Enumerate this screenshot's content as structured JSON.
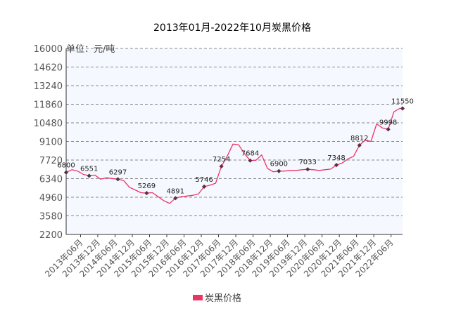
{
  "chart_data": {
    "type": "line",
    "title": "2013年01月-2022年10月炭黑价格",
    "unit_label": "单位：元/吨",
    "legend": [
      "炭黑价格"
    ],
    "colors": {
      "line": "#ee3366",
      "marker": "#553344",
      "plot_bg": "#f6f8ff",
      "grid": "#888888"
    },
    "grid": true,
    "legend_position": "bottom",
    "ylim": [
      2200,
      16000
    ],
    "yticks": [
      2200,
      3580,
      4960,
      6340,
      7720,
      9100,
      10480,
      11860,
      13240,
      14620,
      16000
    ],
    "xlim": [
      "2013-01",
      "2022-10"
    ],
    "x_tick_labels": [
      "2013年06月",
      "2013年12月",
      "2014年06月",
      "2014年12月",
      "2015年06月",
      "2015年12月",
      "2016年06月",
      "2016年12月",
      "2017年06月",
      "2017年12月",
      "2018年06月",
      "2018年12月",
      "2019年06月",
      "2019年12月",
      "2020年06月",
      "2020年12月",
      "2021年06月",
      "2021年12月",
      "2022年06月"
    ],
    "series": [
      {
        "name": "炭黑价格",
        "x": [
          "2013-01",
          "2013-03",
          "2013-05",
          "2013-07",
          "2013-09",
          "2013-11",
          "2014-01",
          "2014-03",
          "2014-05",
          "2014-07",
          "2014-09",
          "2014-11",
          "2015-01",
          "2015-03",
          "2015-05",
          "2015-07",
          "2015-09",
          "2015-11",
          "2016-01",
          "2016-03",
          "2016-05",
          "2016-07",
          "2016-09",
          "2016-11",
          "2017-01",
          "2017-03",
          "2017-05",
          "2017-07",
          "2017-09",
          "2017-11",
          "2018-01",
          "2018-03",
          "2018-05",
          "2018-07",
          "2018-09",
          "2018-11",
          "2019-01",
          "2019-03",
          "2019-05",
          "2019-07",
          "2019-09",
          "2019-11",
          "2020-01",
          "2020-03",
          "2020-05",
          "2020-07",
          "2020-09",
          "2020-11",
          "2021-01",
          "2021-03",
          "2021-05",
          "2021-07",
          "2021-09",
          "2021-11",
          "2022-01",
          "2022-03",
          "2022-05",
          "2022-07",
          "2022-09",
          "2022-10"
        ],
        "y": [
          6800,
          7000,
          6900,
          6650,
          6551,
          6600,
          6300,
          6400,
          6350,
          6297,
          6200,
          5700,
          5500,
          5300,
          5269,
          5300,
          5000,
          4700,
          4500,
          4891,
          5000,
          5050,
          5100,
          5200,
          5746,
          5850,
          6000,
          7254,
          8000,
          8900,
          8850,
          8200,
          7684,
          7700,
          8100,
          7100,
          6850,
          6900,
          6900,
          6950,
          6950,
          7000,
          7033,
          7000,
          6950,
          7000,
          7050,
          7348,
          7500,
          7800,
          8000,
          8812,
          9200,
          9100,
          10400,
          10100,
          9998,
          11300,
          11550,
          11550
        ]
      }
    ],
    "data_labels": [
      {
        "x": "2013-01",
        "y": 6800,
        "text": "6800"
      },
      {
        "x": "2013-09",
        "y": 6551,
        "text": "6551"
      },
      {
        "x": "2014-07",
        "y": 6297,
        "text": "6297"
      },
      {
        "x": "2015-05",
        "y": 5269,
        "text": "5269"
      },
      {
        "x": "2016-03",
        "y": 4891,
        "text": "4891"
      },
      {
        "x": "2017-01",
        "y": 5746,
        "text": "5746"
      },
      {
        "x": "2017-07",
        "y": 7254,
        "text": "7254"
      },
      {
        "x": "2018-05",
        "y": 7684,
        "text": "7684"
      },
      {
        "x": "2019-03",
        "y": 6900,
        "text": "6900"
      },
      {
        "x": "2020-01",
        "y": 7033,
        "text": "7033"
      },
      {
        "x": "2020-11",
        "y": 7348,
        "text": "7348"
      },
      {
        "x": "2021-07",
        "y": 8812,
        "text": "8812"
      },
      {
        "x": "2022-05",
        "y": 9998,
        "text": "9998"
      },
      {
        "x": "2022-10",
        "y": 11550,
        "text": "11550"
      }
    ]
  }
}
